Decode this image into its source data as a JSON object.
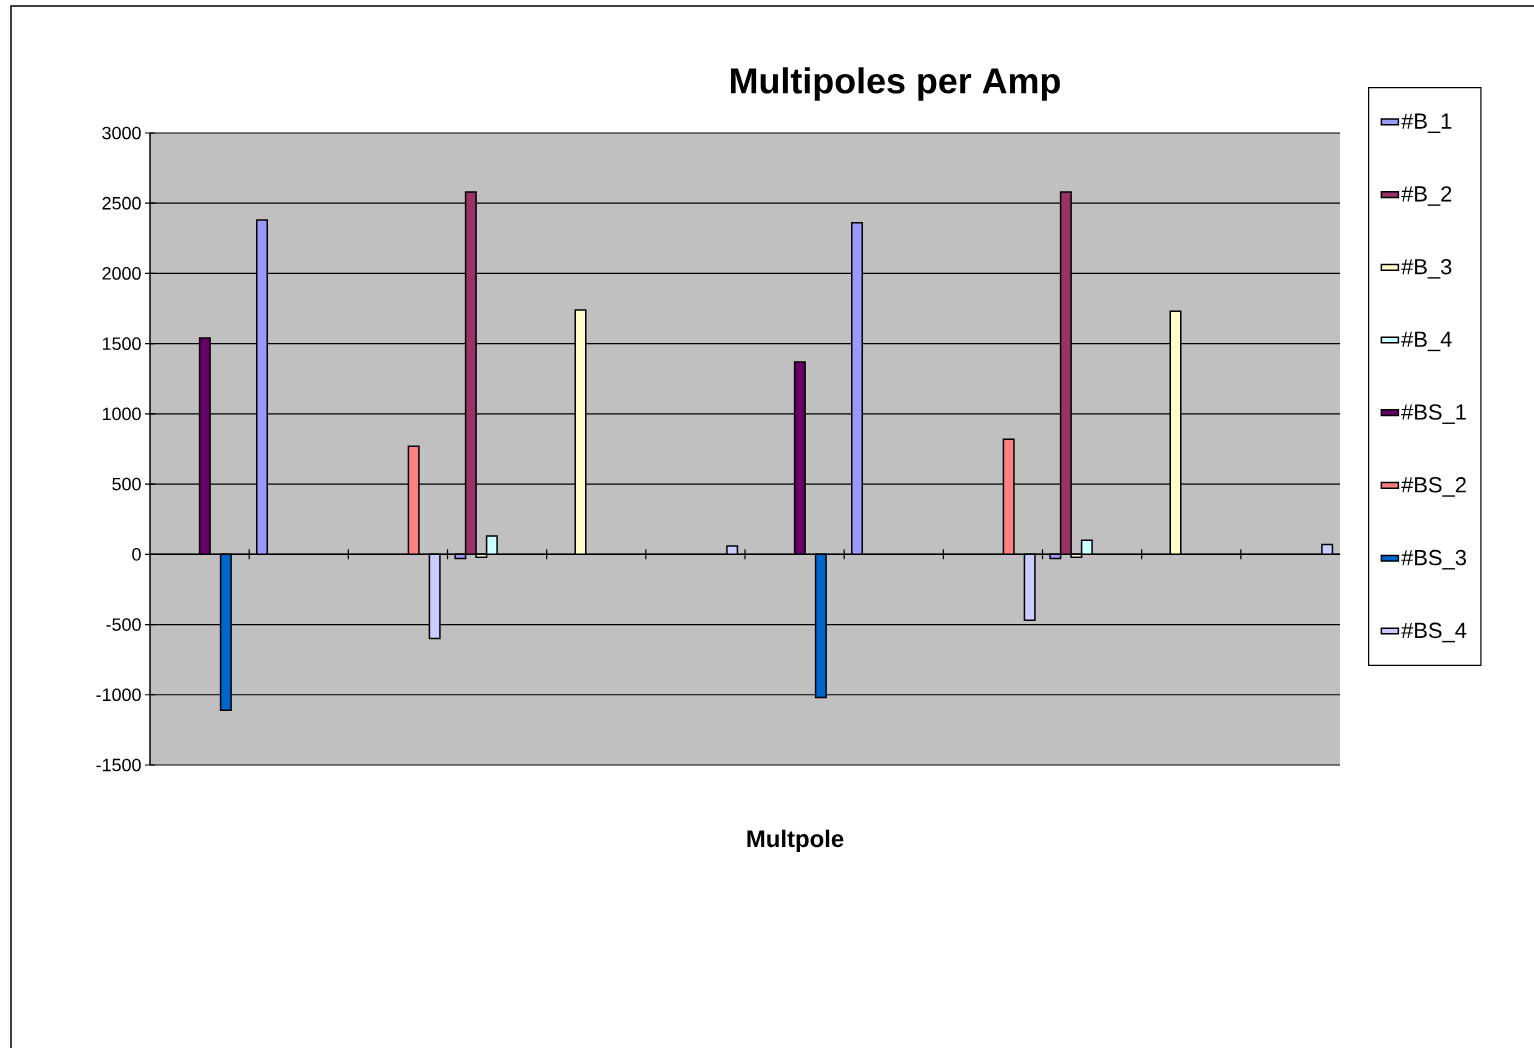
{
  "chart_data": {
    "type": "bar",
    "title": "Multipoles per Amp",
    "xlabel": "Multpole",
    "categories": [
      null,
      null,
      null,
      null,
      null,
      null,
      null,
      null,
      null,
      null,
      null,
      null
    ],
    "series": [
      {
        "name": "#B_1",
        "color": "#9999ff",
        "values": [
          null,
          2380,
          null,
          -30,
          null,
          null,
          null,
          2360,
          null,
          -30,
          null,
          null
        ]
      },
      {
        "name": "#B_2",
        "color": "#993366",
        "values": [
          null,
          null,
          null,
          2580,
          null,
          null,
          null,
          null,
          null,
          2580,
          null,
          null
        ]
      },
      {
        "name": "#B_3",
        "color": "#ffffcc",
        "values": [
          null,
          null,
          null,
          -20,
          1740,
          null,
          null,
          null,
          null,
          -20,
          1730,
          null
        ]
      },
      {
        "name": "#B_4",
        "color": "#ccffff",
        "values": [
          null,
          null,
          null,
          130,
          null,
          null,
          null,
          null,
          null,
          100,
          null,
          null
        ]
      },
      {
        "name": "#BS_1",
        "color": "#660066",
        "values": [
          1540,
          null,
          null,
          null,
          null,
          null,
          1370,
          null,
          null,
          null,
          null,
          null
        ]
      },
      {
        "name": "#BS_2",
        "color": "#ff8080",
        "values": [
          null,
          null,
          770,
          null,
          null,
          null,
          null,
          null,
          820,
          null,
          null,
          null
        ]
      },
      {
        "name": "#BS_3",
        "color": "#0066cc",
        "values": [
          -1110,
          null,
          null,
          null,
          null,
          null,
          -1020,
          null,
          null,
          null,
          null,
          null
        ]
      },
      {
        "name": "#BS_4",
        "color": "#ccccff",
        "values": [
          null,
          null,
          -600,
          null,
          null,
          60,
          null,
          null,
          -470,
          null,
          null,
          70
        ]
      }
    ],
    "ylim": [
      -1500,
      3000
    ],
    "yticks": [
      -1500,
      -1000,
      -500,
      0,
      500,
      1000,
      1500,
      2000,
      2500,
      3000
    ],
    "grid": "y",
    "legend": "right"
  }
}
